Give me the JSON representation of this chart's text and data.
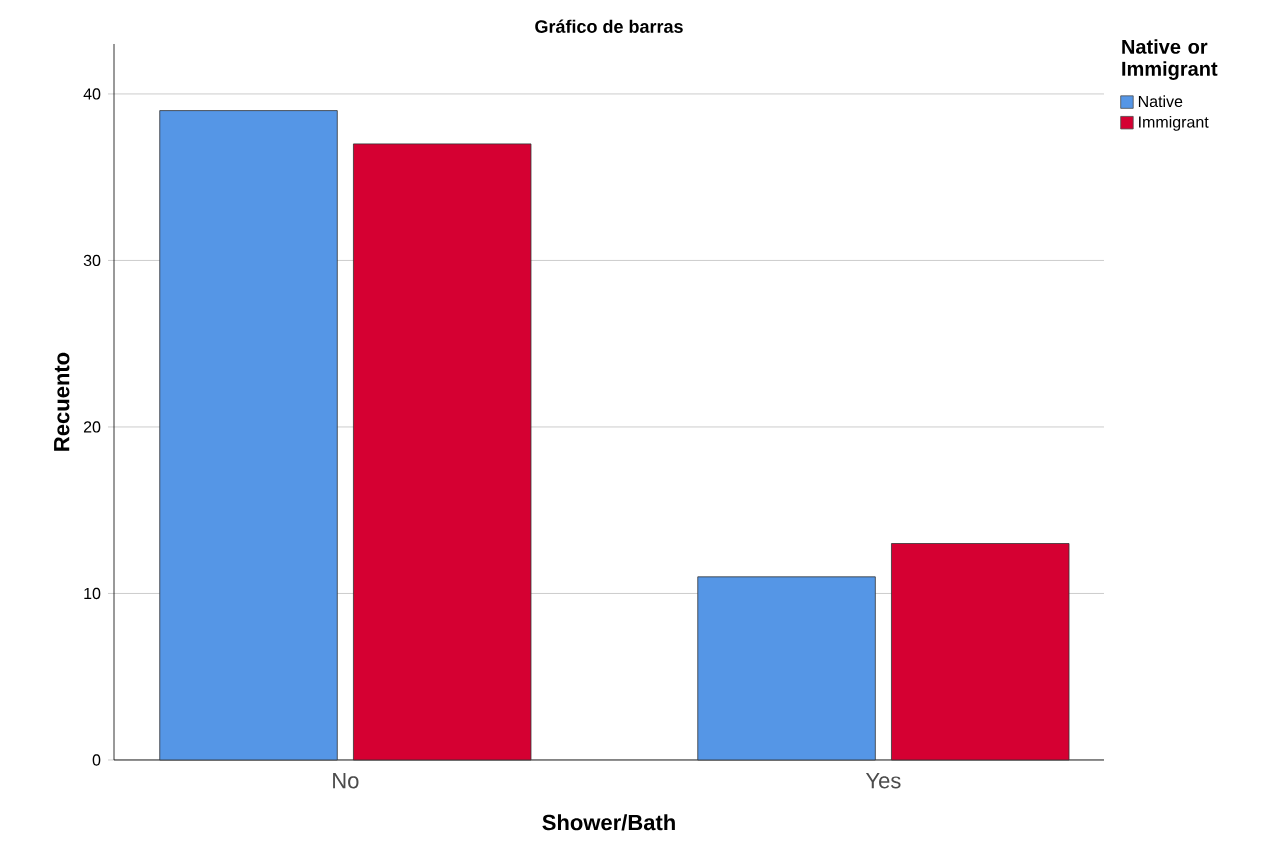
{
  "chart_data": {
    "type": "bar",
    "title": "Gráfico de barras",
    "xlabel": "Shower/Bath",
    "ylabel": "Recuento",
    "legend_title": "Native or Immigrant",
    "categories": [
      "No",
      "Yes"
    ],
    "series": [
      {
        "name": "Native",
        "color": "#5596e6",
        "values": [
          39,
          11
        ]
      },
      {
        "name": "Immigrant",
        "color": "#d50032",
        "values": [
          37,
          13
        ]
      }
    ],
    "ylim": [
      0,
      43
    ],
    "yticks": [
      0,
      10,
      20,
      30,
      40
    ],
    "grid": "y",
    "legend": "top right"
  }
}
